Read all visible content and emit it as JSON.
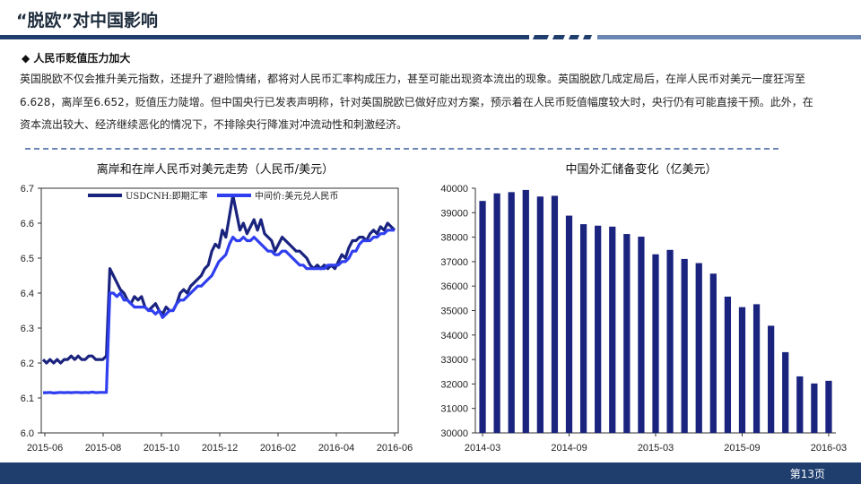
{
  "slide": {
    "title": "“脱欧”对中国影响",
    "section_heading": "◆ 人民币贬值压力加大",
    "paragraph": "英国脱欧不仅会推升美元指数，还提升了避险情绪，都将对人民币汇率构成压力，甚至可能出现资本流出的现象。英国脱欧几成定局后，在岸人民币对美元一度狂泻至6.628，离岸至6.652，贬值压力陡增。但中国央行已发表声明称，针对英国脱欧已做好应对方案，预示着在人民币贬值幅度较大时，央行仍有可能直接干预。此外，在资本流出较大、经济继续恶化的情况下，不排除央行降准对冲流动性和刺激经济。",
    "page_number": "第13页"
  },
  "colors": {
    "accent_dark": "#1f3e6e",
    "accent_light": "#6b86b3",
    "series_offshore": "#1a237e",
    "series_central": "#2f3ff0",
    "bars": "#1a237e"
  },
  "chart_data": [
    {
      "type": "line",
      "title": "离岸和在岸人民币对美元走势（人民币/美元）",
      "ylim": [
        6.0,
        6.7
      ],
      "y_ticks": [
        "6.0",
        "6.1",
        "6.2",
        "6.3",
        "6.4",
        "6.5",
        "6.6",
        "6.7"
      ],
      "x_ticks": [
        "2015-06",
        "2015-08",
        "2015-10",
        "2015-12",
        "2016-02",
        "2016-04",
        "2016-06"
      ],
      "legend": "top-left",
      "grid": false,
      "series": [
        {
          "name": "USDCNH:即期汇率",
          "values": [
            6.21,
            6.2,
            6.21,
            6.2,
            6.21,
            6.2,
            6.21,
            6.21,
            6.22,
            6.21,
            6.22,
            6.21,
            6.21,
            6.22,
            6.22,
            6.21,
            6.21,
            6.21,
            6.22,
            6.47,
            6.45,
            6.43,
            6.41,
            6.4,
            6.38,
            6.37,
            6.39,
            6.38,
            6.39,
            6.36,
            6.35,
            6.36,
            6.37,
            6.35,
            6.34,
            6.36,
            6.35,
            6.35,
            6.37,
            6.4,
            6.41,
            6.4,
            6.42,
            6.43,
            6.44,
            6.45,
            6.47,
            6.48,
            6.52,
            6.54,
            6.53,
            6.58,
            6.56,
            6.62,
            6.68,
            6.63,
            6.58,
            6.6,
            6.57,
            6.59,
            6.61,
            6.58,
            6.61,
            6.57,
            6.56,
            6.55,
            6.52,
            6.54,
            6.56,
            6.55,
            6.54,
            6.53,
            6.52,
            6.52,
            6.51,
            6.5,
            6.48,
            6.47,
            6.48,
            6.47,
            6.48,
            6.47,
            6.48,
            6.47,
            6.49,
            6.51,
            6.5,
            6.53,
            6.55,
            6.55,
            6.56,
            6.56,
            6.55,
            6.57,
            6.58,
            6.57,
            6.59,
            6.58,
            6.6,
            6.59,
            6.58
          ]
        },
        {
          "name": "中间价:美元兑人民币",
          "values": [
            6.115,
            6.115,
            6.116,
            6.114,
            6.115,
            6.116,
            6.115,
            6.116,
            6.115,
            6.116,
            6.116,
            6.115,
            6.116,
            6.115,
            6.117,
            6.115,
            6.116,
            6.116,
            6.116,
            6.4,
            6.4,
            6.39,
            6.4,
            6.38,
            6.38,
            6.37,
            6.36,
            6.36,
            6.36,
            6.36,
            6.35,
            6.35,
            6.34,
            6.35,
            6.33,
            6.34,
            6.35,
            6.35,
            6.37,
            6.38,
            6.38,
            6.39,
            6.4,
            6.41,
            6.42,
            6.42,
            6.43,
            6.44,
            6.45,
            6.47,
            6.49,
            6.5,
            6.51,
            6.54,
            6.56,
            6.55,
            6.55,
            6.56,
            6.55,
            6.55,
            6.56,
            6.55,
            6.54,
            6.53,
            6.52,
            6.52,
            6.51,
            6.51,
            6.52,
            6.52,
            6.51,
            6.5,
            6.49,
            6.48,
            6.48,
            6.47,
            6.47,
            6.47,
            6.47,
            6.47,
            6.47,
            6.48,
            6.48,
            6.48,
            6.48,
            6.49,
            6.49,
            6.5,
            6.52,
            6.52,
            6.54,
            6.55,
            6.55,
            6.55,
            6.56,
            6.56,
            6.57,
            6.57,
            6.58,
            6.58,
            6.58
          ]
        }
      ]
    },
    {
      "type": "bar",
      "title": "中国外汇储备变化（亿美元）",
      "ylim": [
        30000,
        40000
      ],
      "y_ticks": [
        "30000",
        "31000",
        "32000",
        "33000",
        "34000",
        "35000",
        "36000",
        "37000",
        "38000",
        "39000",
        "40000"
      ],
      "x_ticks": [
        "2014-03",
        "2014-09",
        "2015-03",
        "2015-09",
        "2016-03"
      ],
      "categories": [
        "2014-03",
        "2014-04",
        "2014-05",
        "2014-06",
        "2014-07",
        "2014-08",
        "2014-09",
        "2014-10",
        "2014-11",
        "2014-12",
        "2015-01",
        "2015-02",
        "2015-03",
        "2015-04",
        "2015-05",
        "2015-06",
        "2015-07",
        "2015-08",
        "2015-09",
        "2015-10",
        "2015-11",
        "2015-12",
        "2016-01",
        "2016-02",
        "2016-03"
      ],
      "values": [
        39480,
        39790,
        39840,
        39930,
        39660,
        39690,
        38880,
        38530,
        38470,
        38430,
        38130,
        38020,
        37300,
        37480,
        37110,
        36940,
        36510,
        35570,
        35140,
        35260,
        34380,
        33300,
        32310,
        32020,
        32130
      ]
    }
  ]
}
